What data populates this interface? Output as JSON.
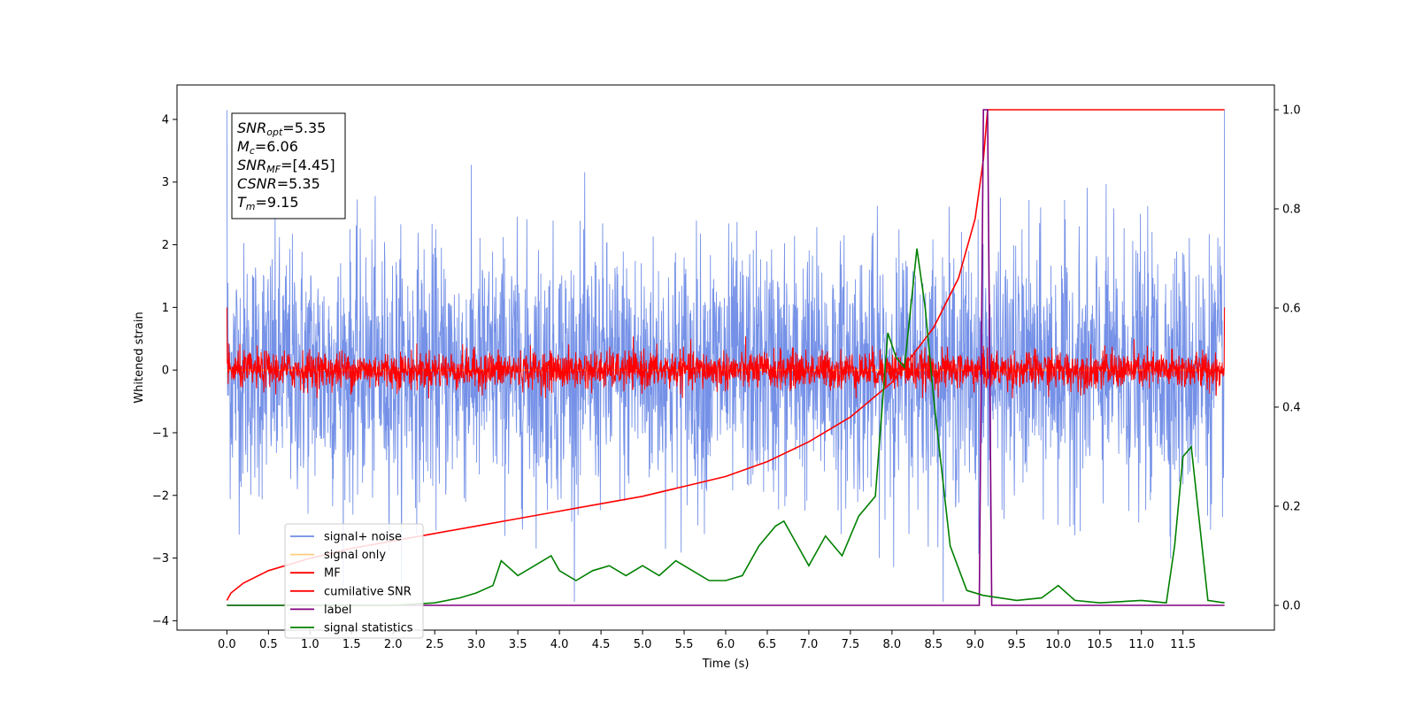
{
  "chart_data": {
    "type": "line",
    "xlabel": "Time (s)",
    "ylabel": "Whitened strain",
    "xlim": [
      -0.6,
      12.6
    ],
    "ylim_left": [
      -4.15,
      4.55
    ],
    "ylim_right": [
      -0.05,
      1.05
    ],
    "x_ticks": [
      0.0,
      0.5,
      1.0,
      1.5,
      2.0,
      2.5,
      3.0,
      3.5,
      4.0,
      4.5,
      5.0,
      5.5,
      6.0,
      6.5,
      7.0,
      7.5,
      8.0,
      8.5,
      9.0,
      9.5,
      10.0,
      10.5,
      11.0,
      11.5
    ],
    "x_tick_labels": [
      "0.0",
      "0.5",
      "1.0",
      "1.5",
      "2.0",
      "2.5",
      "3.0",
      "3.5",
      "4.0",
      "4.5",
      "5.0",
      "5.5",
      "6.0",
      "6.5",
      "7.0",
      "7.5",
      "8.0",
      "8.5",
      "9.0",
      "9.5",
      "10.0",
      "10.5",
      "11.0",
      "11.5"
    ],
    "y_left_ticks": [
      -4,
      -3,
      -2,
      -1,
      0,
      1,
      2,
      3,
      4
    ],
    "y_left_tick_labels": [
      "−4",
      "−3",
      "−2",
      "−1",
      "0",
      "1",
      "2",
      "3",
      "4"
    ],
    "y_right_ticks": [
      0.0,
      0.2,
      0.4,
      0.6,
      0.8,
      1.0
    ],
    "y_right_tick_labels": [
      "0.0",
      "0.2",
      "0.4",
      "0.6",
      "0.8",
      "1.0"
    ],
    "legend_position": "lower-left",
    "series": [
      {
        "name": "signal+ noise",
        "axis": "left",
        "color": "#6e8be6",
        "style": "noise",
        "x_range": [
          0,
          12
        ],
        "amplitude_range": [
          -3.7,
          4.15
        ]
      },
      {
        "name": "signal only",
        "axis": "left",
        "color": "#ffcc80",
        "style": "flat",
        "x_range": [
          0,
          12
        ],
        "value": 0
      },
      {
        "name": "MF",
        "axis": "left",
        "color": "#ff0000",
        "style": "noise",
        "x_range": [
          0,
          12
        ],
        "amplitude_range": [
          -0.45,
          1.0
        ]
      },
      {
        "name": "cumilative SNR",
        "axis": "right",
        "color": "#ff0000",
        "style": "line",
        "x": [
          0.0,
          0.05,
          0.2,
          0.5,
          1.0,
          1.5,
          2.0,
          2.5,
          3.0,
          3.5,
          4.0,
          4.5,
          5.0,
          5.5,
          6.0,
          6.5,
          7.0,
          7.5,
          8.0,
          8.5,
          8.8,
          9.0,
          9.1,
          9.15,
          12.0
        ],
        "y": [
          0.01,
          0.025,
          0.045,
          0.07,
          0.095,
          0.115,
          0.13,
          0.145,
          0.16,
          0.175,
          0.19,
          0.205,
          0.22,
          0.24,
          0.26,
          0.29,
          0.33,
          0.38,
          0.45,
          0.56,
          0.66,
          0.78,
          0.9,
          1.0,
          1.0
        ]
      },
      {
        "name": "label",
        "axis": "right",
        "color": "#800080",
        "style": "line",
        "x": [
          0.0,
          9.05,
          9.1,
          9.15,
          9.2,
          12.0
        ],
        "y": [
          0.0,
          0.0,
          1.0,
          1.0,
          0.0,
          0.0
        ]
      },
      {
        "name": "signal statistics",
        "axis": "right",
        "color": "#008000",
        "style": "line",
        "x": [
          0.0,
          0.5,
          1.0,
          1.5,
          2.0,
          2.5,
          2.8,
          3.0,
          3.2,
          3.3,
          3.5,
          3.7,
          3.9,
          4.0,
          4.2,
          4.4,
          4.6,
          4.8,
          5.0,
          5.2,
          5.4,
          5.6,
          5.8,
          6.0,
          6.2,
          6.4,
          6.6,
          6.7,
          6.9,
          7.0,
          7.2,
          7.4,
          7.6,
          7.8,
          7.95,
          8.05,
          8.15,
          8.3,
          8.4,
          8.5,
          8.7,
          8.9,
          9.1,
          9.5,
          9.8,
          10.0,
          10.2,
          10.5,
          11.0,
          11.3,
          11.4,
          11.5,
          11.6,
          11.8,
          12.0
        ],
        "y": [
          0.0,
          0.0,
          0.0,
          0.0,
          0.0,
          0.005,
          0.015,
          0.025,
          0.04,
          0.09,
          0.06,
          0.08,
          0.1,
          0.07,
          0.05,
          0.07,
          0.08,
          0.06,
          0.08,
          0.06,
          0.09,
          0.07,
          0.05,
          0.05,
          0.06,
          0.12,
          0.16,
          0.17,
          0.11,
          0.08,
          0.14,
          0.1,
          0.18,
          0.22,
          0.55,
          0.5,
          0.48,
          0.72,
          0.6,
          0.42,
          0.12,
          0.03,
          0.02,
          0.01,
          0.015,
          0.04,
          0.01,
          0.005,
          0.01,
          0.005,
          0.12,
          0.3,
          0.32,
          0.01,
          0.005
        ]
      }
    ]
  },
  "annotation": {
    "lines": [
      {
        "sym": "SNR",
        "sub": "opt",
        "value": "=5.35"
      },
      {
        "sym": "M",
        "sub": "c",
        "value": "=6.06"
      },
      {
        "sym": "SNR",
        "sub": "MF",
        "value": "=[4.45]"
      },
      {
        "sym": "CSNR",
        "sub": "",
        "value": "=5.35"
      },
      {
        "sym": "T",
        "sub": "m",
        "value": "=9.15"
      }
    ]
  },
  "legend": {
    "entries": [
      {
        "label": "signal+ noise",
        "color": "#6e8be6"
      },
      {
        "label": "signal only",
        "color": "#ffcc80"
      },
      {
        "label": "MF",
        "color": "#ff0000"
      },
      {
        "label": "cumilative SNR",
        "color": "#ff0000"
      },
      {
        "label": "label",
        "color": "#800080"
      },
      {
        "label": "signal statistics",
        "color": "#008000"
      }
    ]
  }
}
